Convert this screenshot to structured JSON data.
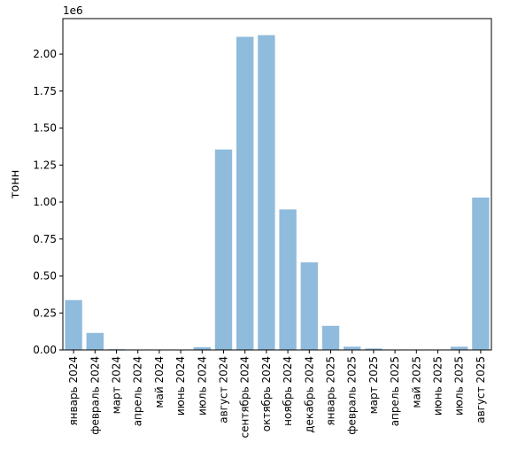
{
  "chart_data": {
    "type": "bar",
    "categories": [
      "январь 2024",
      "февраль 2024",
      "март 2024",
      "апрель 2024",
      "май 2024",
      "июнь 2024",
      "июль 2024",
      "август 2024",
      "сентябрь 2024",
      "октябрь 2024",
      "ноябрь 2024",
      "декабрь 2024",
      "январь 2025",
      "февраль 2025",
      "март 2025",
      "апрель 2025",
      "май 2025",
      "июнь 2025",
      "июль 2025",
      "август 2025"
    ],
    "values": [
      337000,
      115000,
      5000,
      0,
      0,
      0,
      18000,
      1355000,
      2117000,
      2128000,
      950000,
      592000,
      163000,
      22000,
      10000,
      0,
      0,
      0,
      22000,
      1030000
    ],
    "title": "",
    "xlabel": "",
    "ylabel": "тонн",
    "ylim": [
      0,
      2240000
    ],
    "yticks": [
      0,
      250000,
      500000,
      750000,
      1000000,
      1250000,
      1500000,
      1750000,
      2000000
    ],
    "ytick_labels": [
      "0.00",
      "0.25",
      "0.50",
      "0.75",
      "1.00",
      "1.25",
      "1.50",
      "1.75",
      "2.00"
    ],
    "y_offset_text": "1e6",
    "bar_color": "#8fbbdc",
    "grid": false,
    "legend": "none"
  }
}
